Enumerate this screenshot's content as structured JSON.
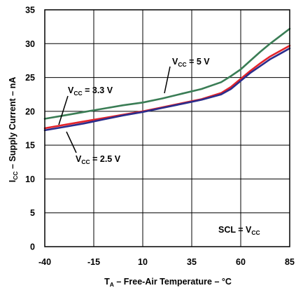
{
  "chart_data": {
    "type": "line",
    "xlabel": {
      "main": "T",
      "sub": "A",
      "rest": " – Free-Air Temperature – °C"
    },
    "ylabel": {
      "main": "I",
      "sub": "CC",
      "rest": " – Supply Current – nA"
    },
    "xlim": [
      -40,
      85
    ],
    "ylim": [
      0,
      35
    ],
    "xticks": [
      -40,
      -15,
      10,
      35,
      60,
      85
    ],
    "yticks": [
      0,
      5,
      10,
      15,
      20,
      25,
      30,
      35
    ],
    "grid": true,
    "series": [
      {
        "name": "VCC = 5 V",
        "color": "#3a7d55",
        "x": [
          -40,
          -30,
          -20,
          -10,
          0,
          10,
          20,
          30,
          40,
          50,
          55,
          60,
          65,
          70,
          75,
          80,
          85
        ],
        "y": [
          18.9,
          19.4,
          19.9,
          20.4,
          20.9,
          21.3,
          21.9,
          22.6,
          23.3,
          24.3,
          25.2,
          26.2,
          27.5,
          28.8,
          30.0,
          31.1,
          32.2
        ]
      },
      {
        "name": "VCC = 3.3 V",
        "color": "#e3242b",
        "x": [
          -40,
          -30,
          -20,
          -10,
          0,
          10,
          20,
          30,
          40,
          50,
          55,
          60,
          65,
          70,
          75,
          80,
          85
        ],
        "y": [
          17.5,
          18.0,
          18.5,
          19.0,
          19.5,
          20.0,
          20.6,
          21.2,
          21.8,
          22.7,
          23.6,
          24.8,
          26.0,
          27.1,
          28.1,
          28.9,
          29.7
        ]
      },
      {
        "name": "VCC = 2.5 V",
        "color": "#2b2d8c",
        "x": [
          -40,
          -30,
          -20,
          -10,
          0,
          10,
          20,
          30,
          40,
          50,
          55,
          60,
          65,
          70,
          75,
          80,
          85
        ],
        "y": [
          17.2,
          17.7,
          18.2,
          18.8,
          19.4,
          19.9,
          20.5,
          21.1,
          21.7,
          22.5,
          23.3,
          24.5,
          25.7,
          26.7,
          27.7,
          28.5,
          29.3
        ]
      }
    ],
    "annotations": [
      {
        "main": "V",
        "sub": "CC",
        "rest": " = 5 V",
        "series": 0
      },
      {
        "main": "V",
        "sub": "CC",
        "rest": " = 3.3 V",
        "series": 1
      },
      {
        "main": "V",
        "sub": "CC",
        "rest": " = 2.5 V",
        "series": 2
      },
      {
        "main": "SCL = V",
        "sub": "CC",
        "rest": ""
      }
    ]
  }
}
